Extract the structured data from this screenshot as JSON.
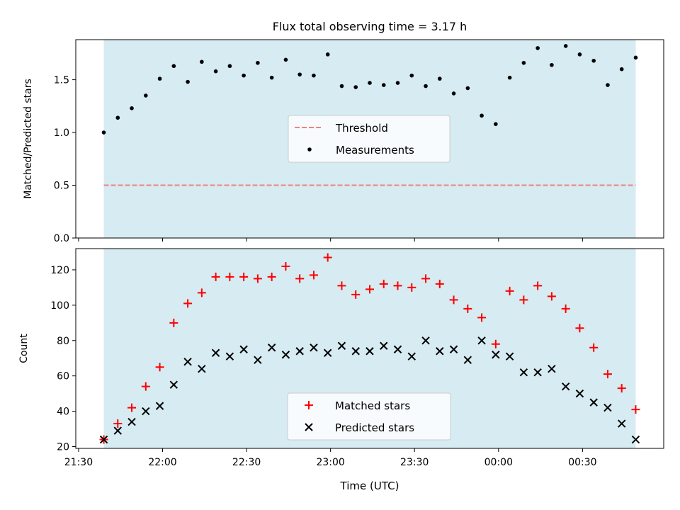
{
  "figure": {
    "title": "Flux total observing time = 3.17 h"
  },
  "colors": {
    "shade": "#add8e6",
    "threshold": "#f08080",
    "measurements": "#000000",
    "matched": "#ff0000",
    "predicted": "#000000"
  },
  "chart_data": [
    {
      "type": "scatter",
      "panel": "top",
      "title": "Flux total observing time = 3.17 h",
      "ylabel": "Matched/Predicted stars",
      "xlabel": "",
      "xlim": [
        "21:29",
        "00:59"
      ],
      "ylim": [
        0,
        1.88
      ],
      "yticks": [
        0.0,
        0.5,
        1.0,
        1.5
      ],
      "ytick_labels": [
        "0.0",
        "0.5",
        "1.0",
        "1.5"
      ],
      "shaded_x_range": [
        "21:39",
        "00:49"
      ],
      "legend": {
        "placement": "center",
        "entries": [
          "Threshold",
          "Measurements"
        ]
      },
      "threshold": {
        "name": "Threshold",
        "value": 0.5,
        "style": "dashed"
      },
      "series": [
        {
          "name": "Measurements",
          "marker": "dot",
          "x": [
            "21:39",
            "21:44",
            "21:49",
            "21:54",
            "21:59",
            "22:04",
            "22:09",
            "22:14",
            "22:19",
            "22:24",
            "22:29",
            "22:34",
            "22:39",
            "22:44",
            "22:49",
            "22:54",
            "22:59",
            "23:04",
            "23:09",
            "23:14",
            "23:19",
            "23:24",
            "23:29",
            "23:34",
            "23:39",
            "23:44",
            "23:49",
            "23:54",
            "23:59",
            "00:04",
            "00:09",
            "00:14",
            "00:19",
            "00:24",
            "00:29",
            "00:34",
            "00:39",
            "00:44",
            "00:49"
          ],
          "values": [
            1.0,
            1.14,
            1.23,
            1.35,
            1.51,
            1.63,
            1.48,
            1.67,
            1.58,
            1.63,
            1.54,
            1.66,
            1.52,
            1.69,
            1.55,
            1.54,
            1.74,
            1.44,
            1.43,
            1.47,
            1.45,
            1.47,
            1.54,
            1.44,
            1.51,
            1.37,
            1.42,
            1.16,
            1.08,
            1.52,
            1.66,
            1.8,
            1.64,
            1.82,
            1.74,
            1.68,
            1.45,
            1.6,
            1.71
          ]
        }
      ]
    },
    {
      "type": "scatter",
      "panel": "bottom",
      "xlabel": "Time (UTC)",
      "ylabel": "Count",
      "xlim": [
        "21:29",
        "00:59"
      ],
      "ylim": [
        19,
        132
      ],
      "xticks": [
        "21:30",
        "22:00",
        "22:30",
        "23:00",
        "23:30",
        "00:00",
        "00:30"
      ],
      "yticks": [
        20,
        40,
        60,
        80,
        100,
        120
      ],
      "ytick_labels": [
        "20",
        "40",
        "60",
        "80",
        "100",
        "120"
      ],
      "shaded_x_range": [
        "21:39",
        "00:49"
      ],
      "legend": {
        "placement": "lower center",
        "entries": [
          "Matched stars",
          "Predicted stars"
        ]
      },
      "series": [
        {
          "name": "Matched stars",
          "marker": "plus",
          "x": [
            "21:39",
            "21:44",
            "21:49",
            "21:54",
            "21:59",
            "22:04",
            "22:09",
            "22:14",
            "22:19",
            "22:24",
            "22:29",
            "22:34",
            "22:39",
            "22:44",
            "22:49",
            "22:54",
            "22:59",
            "23:04",
            "23:09",
            "23:14",
            "23:19",
            "23:24",
            "23:29",
            "23:34",
            "23:39",
            "23:44",
            "23:49",
            "23:54",
            "23:59",
            "00:04",
            "00:09",
            "00:14",
            "00:19",
            "00:24",
            "00:29",
            "00:34",
            "00:39",
            "00:44",
            "00:49"
          ],
          "values": [
            24,
            33,
            42,
            54,
            65,
            90,
            101,
            107,
            116,
            116,
            116,
            115,
            116,
            122,
            115,
            117,
            127,
            111,
            106,
            109,
            112,
            111,
            110,
            115,
            112,
            103,
            98,
            93,
            78,
            108,
            103,
            111,
            105,
            98,
            87,
            76,
            61,
            53,
            41
          ]
        },
        {
          "name": "Predicted stars",
          "marker": "x",
          "x": [
            "21:39",
            "21:44",
            "21:49",
            "21:54",
            "21:59",
            "22:04",
            "22:09",
            "22:14",
            "22:19",
            "22:24",
            "22:29",
            "22:34",
            "22:39",
            "22:44",
            "22:49",
            "22:54",
            "22:59",
            "23:04",
            "23:09",
            "23:14",
            "23:19",
            "23:24",
            "23:29",
            "23:34",
            "23:39",
            "23:44",
            "23:49",
            "23:54",
            "23:59",
            "00:04",
            "00:09",
            "00:14",
            "00:19",
            "00:24",
            "00:29",
            "00:34",
            "00:39",
            "00:44",
            "00:49"
          ],
          "values": [
            24,
            29,
            34,
            40,
            43,
            55,
            68,
            64,
            73,
            71,
            75,
            69,
            76,
            72,
            74,
            76,
            73,
            77,
            74,
            74,
            77,
            75,
            71,
            80,
            74,
            75,
            69,
            80,
            72,
            71,
            62,
            62,
            64,
            54,
            50,
            45,
            42,
            33,
            24
          ]
        }
      ]
    }
  ]
}
